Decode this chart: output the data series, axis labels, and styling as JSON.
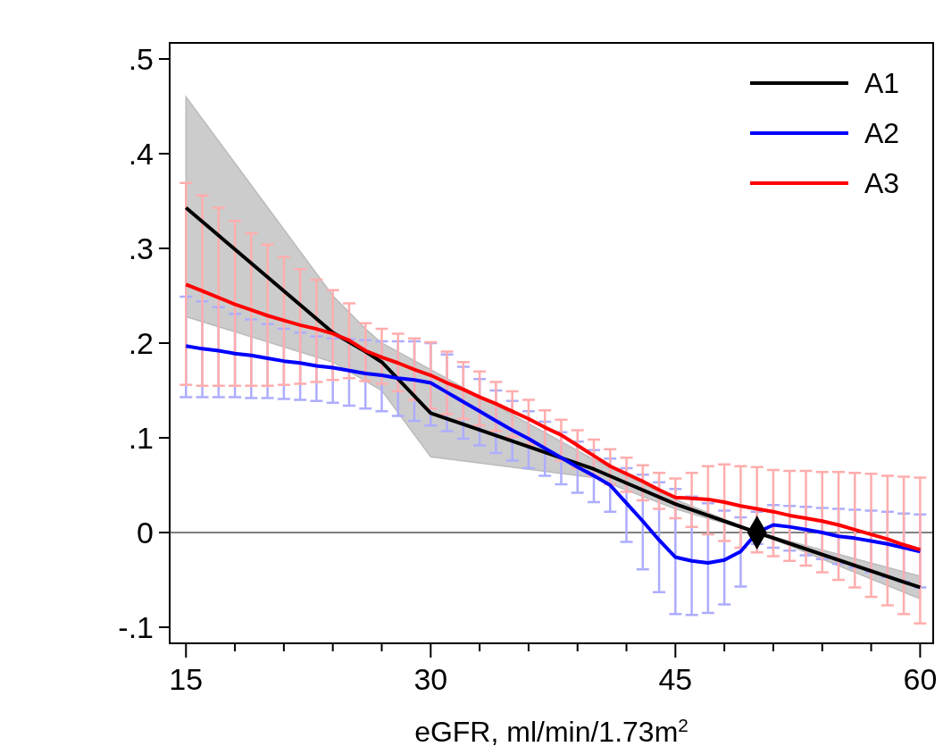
{
  "chart_data": {
    "type": "line",
    "xlabel": "eGFR, ml/min/1.73m$^{2}$",
    "x": [
      15,
      16,
      17,
      18,
      19,
      20,
      21,
      22,
      23,
      24,
      25,
      26,
      27,
      28,
      29,
      30,
      31,
      32,
      33,
      34,
      35,
      36,
      37,
      38,
      39,
      40,
      41,
      42,
      43,
      44,
      45,
      46,
      47,
      48,
      49,
      50,
      51,
      52,
      53,
      54,
      55,
      56,
      57,
      58,
      59,
      60
    ],
    "xlim": [
      14,
      60.8
    ],
    "xticks": [
      15,
      {
        "value": 18,
        "label": null
      },
      {
        "value": 21,
        "label": null
      },
      {
        "value": 24,
        "label": null
      },
      {
        "value": 27,
        "label": null
      },
      30,
      {
        "value": 33,
        "label": null
      },
      {
        "value": 36,
        "label": null
      },
      {
        "value": 39,
        "label": null
      },
      {
        "value": 42,
        "label": null
      },
      45,
      {
        "value": 48,
        "label": null
      },
      {
        "value": 51,
        "label": null
      },
      {
        "value": 54,
        "label": null
      },
      {
        "value": 57,
        "label": null
      },
      60
    ],
    "ylim": [
      -0.117,
      0.517
    ],
    "yticks": [
      {
        "value": -0.1,
        "label": "-.1"
      },
      0,
      {
        "value": 0.1,
        "label": ".1"
      },
      {
        "value": 0.2,
        "label": ".2"
      },
      {
        "value": 0.3,
        "label": ".3"
      },
      {
        "value": 0.4,
        "label": ".4"
      },
      {
        "value": 0.5,
        "label": ".5"
      }
    ],
    "grid": false,
    "legend": "top right",
    "line_style": "solid",
    "ref_lines": [
      {
        "axis": "y",
        "value": 0,
        "label": null,
        "color": "#808080"
      }
    ],
    "series": [
      {
        "name": "A1",
        "color": "#000000",
        "x": [
          15,
          24,
          26,
          27,
          30,
          40,
          45,
          50,
          60
        ],
        "values": [
          0.343,
          0.211,
          0.191,
          0.18,
          0.126,
          0.067,
          0.03,
          0,
          -0.058
        ],
        "lower": [
          0.228,
          0.18,
          0.16,
          0.15,
          0.08,
          0.058,
          0.025,
          0,
          -0.07
        ],
        "upper": [
          0.46,
          0.25,
          0.215,
          0.2,
          0.172,
          0.077,
          0.035,
          0,
          -0.046
        ]
      },
      {
        "name": "A2",
        "color": "#0000ff",
        "values": [
          0.197,
          0.194,
          0.192,
          0.189,
          0.187,
          0.184,
          0.181,
          0.179,
          0.176,
          0.174,
          0.171,
          0.168,
          0.166,
          0.163,
          0.161,
          0.158,
          0.148,
          0.138,
          0.128,
          0.118,
          0.108,
          0.099,
          0.089,
          0.079,
          0.069,
          0.06,
          0.05,
          0.031,
          0.012,
          -0.008,
          -0.026,
          -0.03,
          -0.032,
          -0.029,
          -0.02,
          0,
          0.008,
          0.006,
          0.003,
          0,
          -0.004,
          -0.006,
          -0.009,
          -0.012,
          -0.016,
          -0.02
        ],
        "errors": [
          [
            0.143,
            0.249
          ],
          [
            0.143,
            0.244
          ],
          [
            0.143,
            0.238
          ],
          [
            0.143,
            0.231
          ],
          [
            0.142,
            0.225
          ],
          [
            0.142,
            0.22
          ],
          [
            0.141,
            0.215
          ],
          [
            0.14,
            0.211
          ],
          [
            0.139,
            0.207
          ],
          [
            0.137,
            0.205
          ],
          [
            0.134,
            0.204
          ],
          [
            0.131,
            0.203
          ],
          [
            0.128,
            0.202
          ],
          [
            0.123,
            0.202
          ],
          [
            0.118,
            0.202
          ],
          [
            0.113,
            0.2
          ],
          [
            0.107,
            0.188
          ],
          [
            0.099,
            0.175
          ],
          [
            0.092,
            0.162
          ],
          [
            0.084,
            0.15
          ],
          [
            0.076,
            0.139
          ],
          [
            0.068,
            0.128
          ],
          [
            0.06,
            0.117
          ],
          [
            0.051,
            0.106
          ],
          [
            0.042,
            0.096
          ],
          [
            0.032,
            0.087
          ],
          [
            0.022,
            0.078
          ],
          [
            -0.01,
            0.068
          ],
          [
            -0.039,
            0.061
          ],
          [
            -0.063,
            0.053
          ],
          [
            -0.086,
            0.046
          ],
          [
            -0.087,
            0.038
          ],
          [
            -0.085,
            0.031
          ],
          [
            -0.076,
            0.023
          ],
          [
            -0.057,
            0.016
          ],
          [
            -0.012,
            0.022
          ],
          [
            -0.016,
            0.029
          ],
          [
            -0.019,
            0.028
          ],
          [
            -0.024,
            0.027
          ],
          [
            -0.028,
            0.026
          ],
          [
            -0.033,
            0.025
          ],
          [
            -0.037,
            0.024
          ],
          [
            -0.042,
            0.023
          ],
          [
            -0.047,
            0.022
          ],
          [
            -0.052,
            0.02
          ],
          [
            -0.058,
            0.019
          ]
        ]
      },
      {
        "name": "A3",
        "color": "#ff0000",
        "values": [
          0.262,
          0.255,
          0.248,
          0.241,
          0.235,
          0.229,
          0.224,
          0.219,
          0.215,
          0.21,
          0.203,
          0.192,
          0.185,
          0.179,
          0.172,
          0.166,
          0.158,
          0.151,
          0.143,
          0.136,
          0.128,
          0.12,
          0.111,
          0.103,
          0.092,
          0.081,
          0.07,
          0.062,
          0.054,
          0.045,
          0.037,
          0.036,
          0.035,
          0.032,
          0.028,
          0.025,
          0.022,
          0.018,
          0.015,
          0.012,
          0.008,
          0.003,
          -0.002,
          -0.007,
          -0.013,
          -0.018
        ],
        "errors": [
          [
            0.156,
            0.369
          ],
          [
            0.155,
            0.356
          ],
          [
            0.155,
            0.343
          ],
          [
            0.155,
            0.329
          ],
          [
            0.155,
            0.316
          ],
          [
            0.155,
            0.304
          ],
          [
            0.156,
            0.291
          ],
          [
            0.157,
            0.278
          ],
          [
            0.159,
            0.267
          ],
          [
            0.161,
            0.256
          ],
          [
            0.163,
            0.242
          ],
          [
            0.16,
            0.221
          ],
          [
            0.157,
            0.215
          ],
          [
            0.149,
            0.21
          ],
          [
            0.14,
            0.205
          ],
          [
            0.131,
            0.201
          ],
          [
            0.125,
            0.191
          ],
          [
            0.12,
            0.18
          ],
          [
            0.113,
            0.17
          ],
          [
            0.107,
            0.159
          ],
          [
            0.101,
            0.149
          ],
          [
            0.093,
            0.14
          ],
          [
            0.085,
            0.129
          ],
          [
            0.076,
            0.119
          ],
          [
            0.068,
            0.108
          ],
          [
            0.06,
            0.098
          ],
          [
            0.051,
            0.088
          ],
          [
            0.043,
            0.079
          ],
          [
            0.034,
            0.071
          ],
          [
            0.025,
            0.063
          ],
          [
            0.015,
            0.057
          ],
          [
            0.006,
            0.063
          ],
          [
            -0.002,
            0.07
          ],
          [
            -0.009,
            0.072
          ],
          [
            -0.016,
            0.07
          ],
          [
            -0.021,
            0.069
          ],
          [
            -0.025,
            0.066
          ],
          [
            -0.03,
            0.065
          ],
          [
            -0.035,
            0.065
          ],
          [
            -0.042,
            0.064
          ],
          [
            -0.05,
            0.064
          ],
          [
            -0.058,
            0.063
          ],
          [
            -0.068,
            0.062
          ],
          [
            -0.077,
            0.06
          ],
          [
            -0.086,
            0.059
          ],
          [
            -0.096,
            0.058
          ]
        ]
      },
      {
        "type": "scatter",
        "color": "#000000",
        "marker": "diamond",
        "x": [
          50
        ],
        "values": [
          0
        ]
      }
    ]
  }
}
